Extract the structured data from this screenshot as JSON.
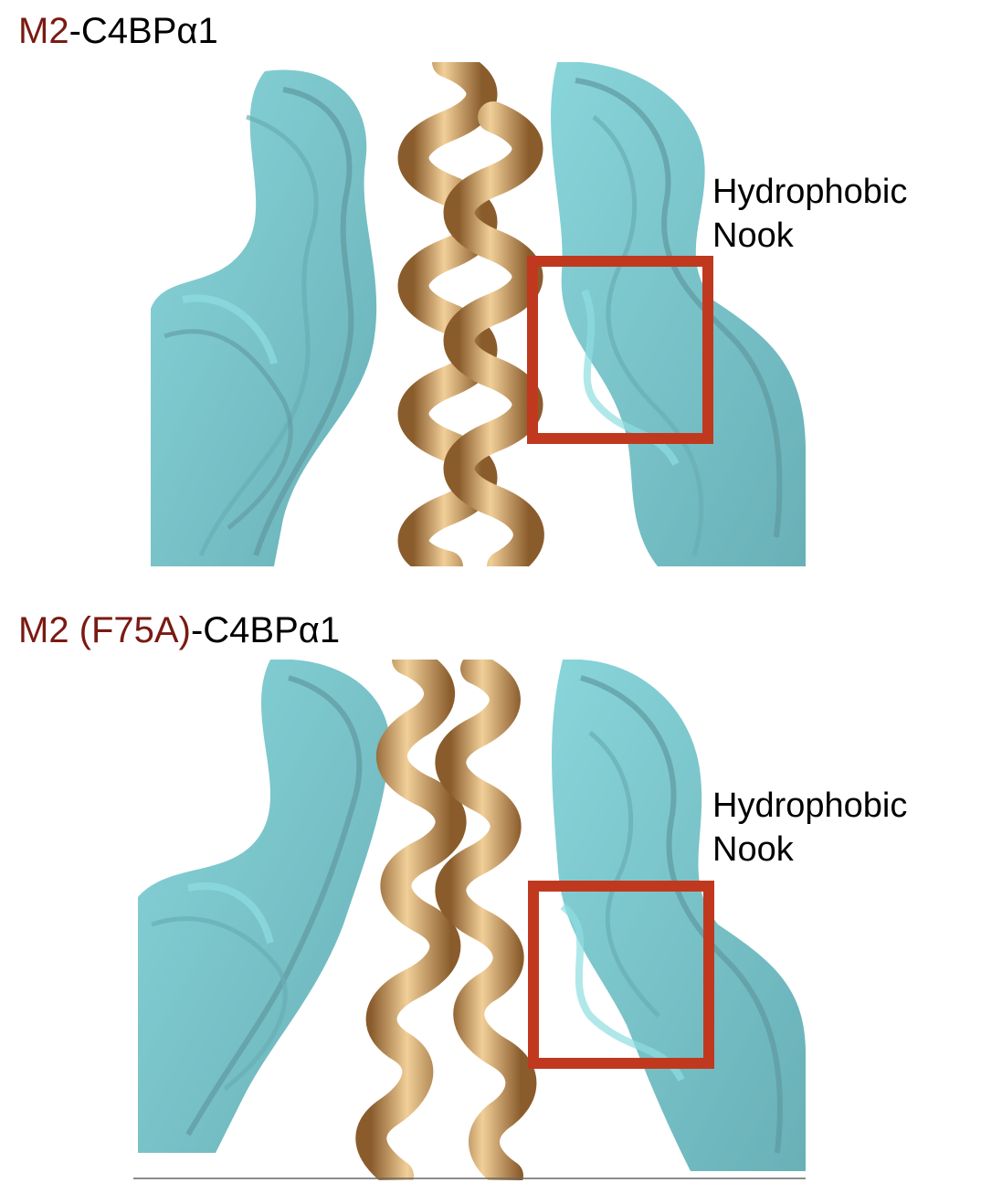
{
  "panels": [
    {
      "title_prefix": "M2",
      "title_suffix": "-C4BPα1",
      "label_line1": "Hydrophobic",
      "label_line2": "Nook"
    },
    {
      "title_prefix": "M2 (F75A)",
      "title_suffix": "-C4BPα1",
      "label_line1": "Hydrophobic",
      "label_line2": "Nook"
    }
  ],
  "colors": {
    "title_highlight": "#7a1a12",
    "protein_cartoon": "#3fb0b8",
    "helix": "#c8955a",
    "highlight_box": "#c0391f"
  }
}
